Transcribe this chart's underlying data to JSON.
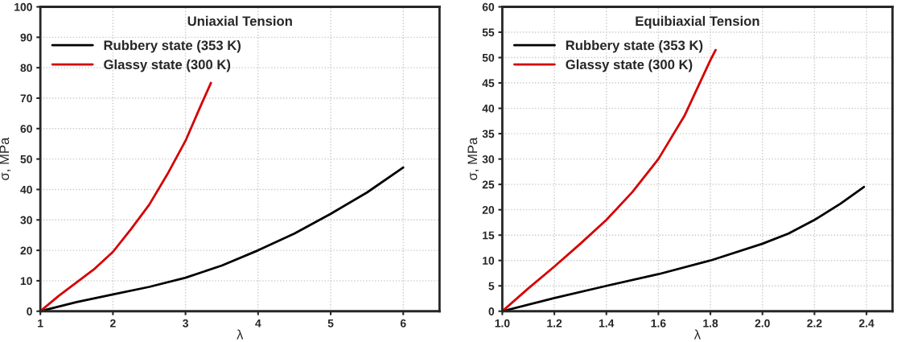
{
  "chart_data": [
    {
      "type": "line",
      "title": "Uniaxial Tension",
      "xlabel": "λ",
      "ylabel": "σ, MPa",
      "xlim": [
        1,
        6.5
      ],
      "xticks": [
        1,
        2,
        3,
        4,
        5,
        6
      ],
      "ylim": [
        0,
        100
      ],
      "yticks": [
        0,
        10,
        20,
        30,
        40,
        50,
        60,
        70,
        80,
        90,
        100
      ],
      "grid": true,
      "legend": "top left",
      "series": [
        {
          "name": "Rubbery state (353 K)",
          "color": "#000000",
          "x": [
            1,
            1.5,
            2,
            2.5,
            3,
            3.5,
            4,
            4.5,
            5,
            5.5,
            6
          ],
          "values": [
            0,
            3,
            5.5,
            8,
            11,
            15,
            20,
            25.5,
            32,
            39,
            47.2
          ]
        },
        {
          "name": "Glassy state (300 K)",
          "color": "#d40000",
          "x": [
            1,
            1.25,
            1.5,
            1.75,
            2,
            2.25,
            2.5,
            2.75,
            3,
            3.2,
            3.35
          ],
          "values": [
            0,
            5,
            9.5,
            14,
            19.5,
            27,
            35,
            45,
            56,
            67,
            75
          ]
        }
      ]
    },
    {
      "type": "line",
      "title": "Equibiaxial Tension",
      "xlabel": "λ",
      "ylabel": "σ, MPa",
      "xlim": [
        1.0,
        2.5
      ],
      "xticks": [
        {
          "value": 1.0,
          "label": "1.0"
        },
        1.2,
        1.4,
        1.6,
        1.8,
        {
          "value": 2.0,
          "label": "2.0"
        },
        2.2,
        2.4
      ],
      "ylim": [
        0,
        60
      ],
      "yticks": [
        0,
        5,
        10,
        15,
        20,
        25,
        30,
        35,
        40,
        45,
        50,
        55,
        60
      ],
      "grid": true,
      "legend": "top left",
      "series": [
        {
          "name": "Rubbery state (353 K)",
          "color": "#000000",
          "x": [
            1,
            1.2,
            1.4,
            1.6,
            1.8,
            2.0,
            2.1,
            2.2,
            2.3,
            2.39
          ],
          "values": [
            0,
            2.6,
            5,
            7.3,
            10,
            13.3,
            15.3,
            18,
            21.2,
            24.5
          ]
        },
        {
          "name": "Glassy state (300 K)",
          "color": "#d40000",
          "x": [
            1,
            1.1,
            1.2,
            1.3,
            1.4,
            1.5,
            1.6,
            1.7,
            1.8,
            1.82
          ],
          "values": [
            0,
            4.5,
            8.8,
            13.3,
            18,
            23.5,
            30,
            38.5,
            49.5,
            51.5
          ]
        }
      ]
    }
  ]
}
